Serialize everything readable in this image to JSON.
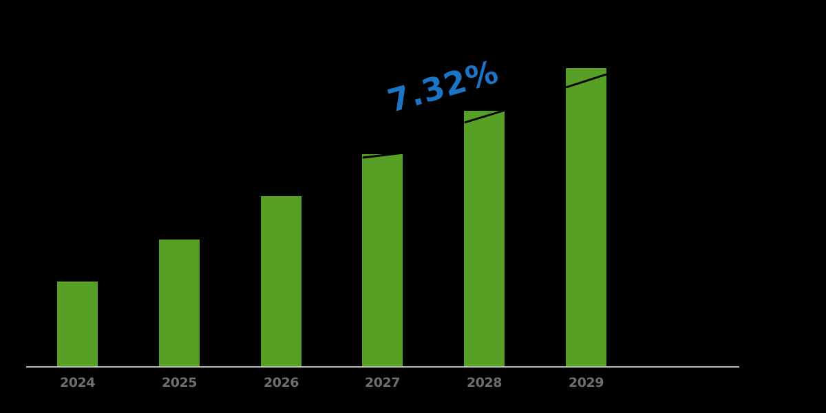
{
  "chart_data": {
    "type": "bar",
    "title": "",
    "xlabel": "",
    "ylabel": "",
    "categories": [
      "2024",
      "2025",
      "2026",
      "2027",
      "2028",
      "2029"
    ],
    "values": [
      124,
      185,
      248,
      309,
      372,
      434
    ],
    "value_units": "relative bar height (no y-axis shown)",
    "grid": false,
    "legend": null,
    "annotations": [
      {
        "text": "7.32%",
        "meaning": "CAGR",
        "color": "#1c74c4"
      }
    ],
    "trend_line": {
      "from_category": "2027",
      "to_category": "2029",
      "color": "#000000"
    },
    "bar_color": "#56a125",
    "background": "#000000"
  },
  "labels": {
    "cagr": "7.32%",
    "x": [
      "2024",
      "2025",
      "2026",
      "2027",
      "2028",
      "2029"
    ]
  }
}
